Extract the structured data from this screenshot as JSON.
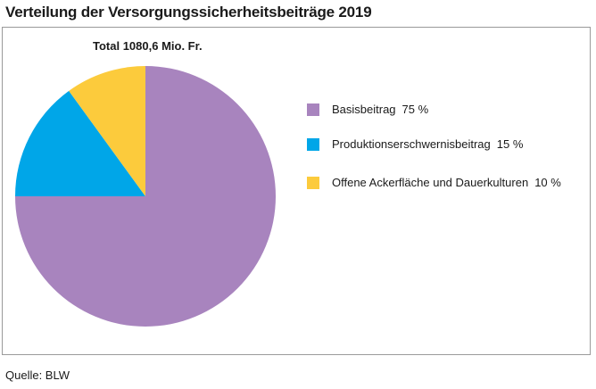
{
  "header": {
    "title": "Verteilung der Versorgungssicherheitsbeiträge 2019"
  },
  "footer": {
    "source": "Quelle: BLW"
  },
  "chart_data": {
    "type": "pie",
    "title": "Verteilung der Versorgungssicherheitsbeiträge 2019",
    "subtitle": "Total 1080,6 Mio. Fr.",
    "total": 1080.6,
    "unit": "Mio. Fr.",
    "legend_position": "right",
    "slices": [
      {
        "label": "Basisbeitrag",
        "value": 75,
        "display": "75 %",
        "color": "#a884be"
      },
      {
        "label": "Produktionserschwernisbeitrag",
        "value": 15,
        "display": "15 %",
        "color": "#00a6e8"
      },
      {
        "label": "Offene Ackerfläche und Dauerkulturen",
        "value": 10,
        "display": "10 %",
        "color": "#fccb3c"
      }
    ]
  }
}
